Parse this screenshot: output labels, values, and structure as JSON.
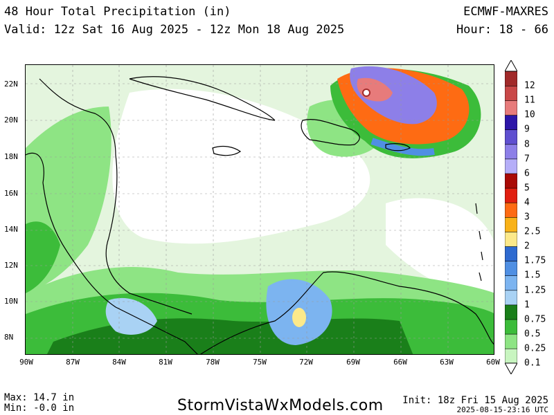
{
  "header": {
    "title": "48 Hour Total Precipitation (in)",
    "valid": "Valid: 12z Sat 16 Aug 2025 - 12z Mon 18 Aug 2025",
    "model": "ECMWF-MAXRES",
    "hours": "Hour: 18 - 66"
  },
  "map": {
    "lat_labels": [
      "22N",
      "20N",
      "18N",
      "16N",
      "14N",
      "12N",
      "10N",
      "8N"
    ],
    "lon_labels": [
      "90W",
      "87W",
      "84W",
      "81W",
      "78W",
      "75W",
      "72W",
      "69W",
      "66W",
      "63W",
      "60W"
    ]
  },
  "colorbar": {
    "levels": [
      "0.1",
      "0.25",
      "0.5",
      "0.75",
      "1",
      "1.25",
      "1.5",
      "1.75",
      "2",
      "2.5",
      "3",
      "4",
      "5",
      "6",
      "7",
      "8",
      "9",
      "10",
      "11",
      "12"
    ],
    "colors": [
      "#c8f5c0",
      "#8ee484",
      "#3cbc3a",
      "#1a7f1a",
      "#a9d2f4",
      "#7cb4f0",
      "#4f8fe3",
      "#2e6ad0",
      "#fde98a",
      "#f9b218",
      "#fe6b13",
      "#e11f10",
      "#a90a05",
      "#b5aef8",
      "#8d7fe8",
      "#5f4fd0",
      "#2d16a8",
      "#e77b7b",
      "#c94848",
      "#a12a2a"
    ]
  },
  "footer": {
    "max": "Max: 14.7 in",
    "min": "Min: -0.0 in",
    "brand": "StormVistaWxModels.com",
    "init": "Init: 18z Fri 15 Aug 2025",
    "stamp": "2025-08-15-23:16 UTC"
  }
}
